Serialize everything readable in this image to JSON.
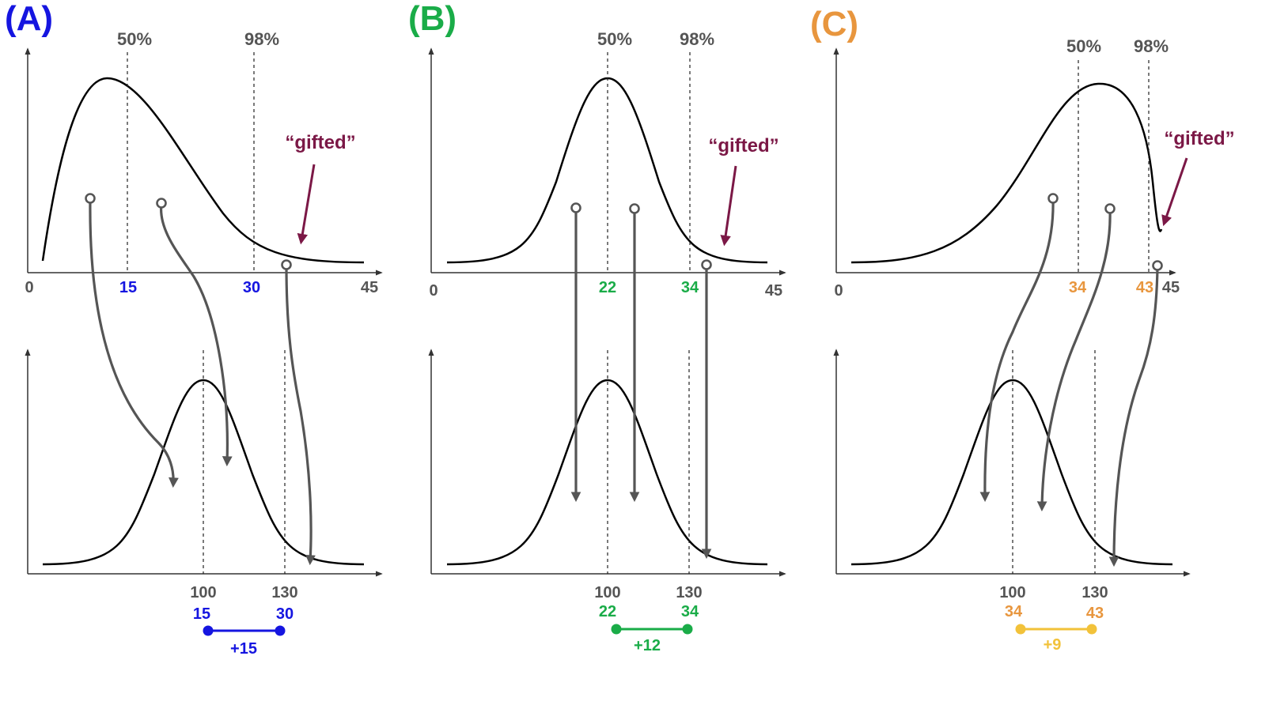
{
  "panels": [
    {
      "label": "(A)",
      "color": "#1515e0",
      "top_axis": {
        "min": "0",
        "max": "45"
      },
      "percentiles": [
        "50%",
        "98%"
      ],
      "top_values": [
        "15",
        "30"
      ],
      "gifted": "“gifted”",
      "bottom_axis": [
        "100",
        "130"
      ],
      "mapped": [
        "15",
        "30"
      ],
      "gap": "+15"
    },
    {
      "label": "(B)",
      "color": "#1aac48",
      "top_axis": {
        "min": "0",
        "max": "45"
      },
      "percentiles": [
        "50%",
        "98%"
      ],
      "top_values": [
        "22",
        "34"
      ],
      "gifted": "“gifted”",
      "bottom_axis": [
        "100",
        "130"
      ],
      "mapped": [
        "22",
        "34"
      ],
      "gap": "+12"
    },
    {
      "label": "(C)",
      "color": "#e8963e",
      "top_axis": {
        "min": "0",
        "max": "45"
      },
      "percentiles": [
        "50%",
        "98%"
      ],
      "top_values": [
        "34",
        "43"
      ],
      "gifted": "“gifted”",
      "bottom_axis": [
        "100",
        "130"
      ],
      "mapped": [
        "34",
        "43"
      ],
      "gap": "+9",
      "gap_color": "#f2c23a"
    }
  ]
}
